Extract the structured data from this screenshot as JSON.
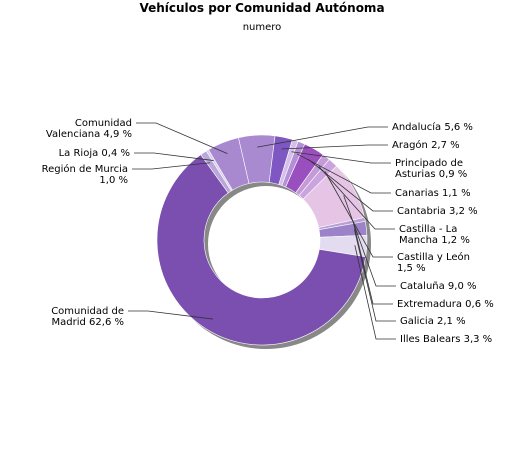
{
  "chart_data": {
    "type": "pie",
    "title": "Vehículos por Comunidad Autónoma",
    "subtitle": "numero",
    "slices": [
      {
        "name": "Andalucía",
        "value": 5.6,
        "label": "Andalucía 5,6 %",
        "color": "#a98ad1"
      },
      {
        "name": "Aragón",
        "value": 2.7,
        "label": "Aragón 2,7 %",
        "color": "#7e57c2"
      },
      {
        "name": "Principado de Asturias",
        "value": 0.9,
        "label": [
          "Principado de",
          "Asturias 0,9 %"
        ],
        "color": "#d6bfe8"
      },
      {
        "name": "Canarias",
        "value": 1.1,
        "label": "Canarias 1,1 %",
        "color": "#b38fd6"
      },
      {
        "name": "Cantabria",
        "value": 3.2,
        "label": "Cantabria 3,2 %",
        "color": "#9a4fbf"
      },
      {
        "name": "Castilla - La Mancha",
        "value": 1.2,
        "label": [
          "Castilla - La",
          "Mancha 1,2 %"
        ],
        "color": "#c49ad9"
      },
      {
        "name": "Castilla y León",
        "value": 1.5,
        "label": [
          "Castilla y León",
          "1,5 %"
        ],
        "color": "#caa3df"
      },
      {
        "name": "Cataluña",
        "value": 9.0,
        "label": "Cataluña 9,0 %",
        "color": "#e5c4e6"
      },
      {
        "name": "Extremadura",
        "value": 0.6,
        "label": "Extremadura 0,6 %",
        "color": "#b9a0d6"
      },
      {
        "name": "Galicia",
        "value": 2.1,
        "label": "Galicia 2,1 %",
        "color": "#9c83c9"
      },
      {
        "name": "Illes Balears",
        "value": 3.3,
        "label": "Illes Balears 3,3 %",
        "color": "#e3dbef"
      },
      {
        "name": "Comunidad de Madrid",
        "value": 62.6,
        "label": [
          "Comunidad de",
          "Madrid 62,6 %"
        ],
        "color": "#7a4fb0"
      },
      {
        "name": "Región de Murcia",
        "value": 1.0,
        "label": [
          "Región de Murcia",
          "1,0 %"
        ],
        "color": "#b9a6da"
      },
      {
        "name": "La Rioja",
        "value": 0.4,
        "label": "La Rioja 0,4 %",
        "color": "#d8cdec"
      },
      {
        "name": "Comunidad Valenciana",
        "value": 4.9,
        "label": [
          "Comunidad",
          "Valenciana 4,9 %"
        ],
        "color": "#a888cf"
      }
    ]
  }
}
